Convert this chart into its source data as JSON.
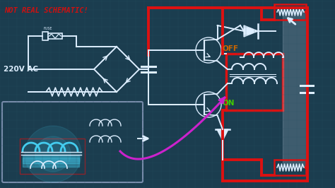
{
  "background_color": "#1b3d4f",
  "grid_color": "#2a5566",
  "title_text": "NOT REAL SCHEMATIC!",
  "title_color": "#cc1111",
  "label_220v": "220V AC",
  "label_off": "OFF",
  "label_on": "ON",
  "label_fuse": "FUSE",
  "off_color": "#cc6600",
  "on_color": "#44cc00",
  "white_color": "#ddeeff",
  "red_color": "#dd1111",
  "cyan_color": "#44ccee",
  "magenta_color": "#cc22cc",
  "fig_width": 4.74,
  "fig_height": 2.66,
  "dpi": 100
}
